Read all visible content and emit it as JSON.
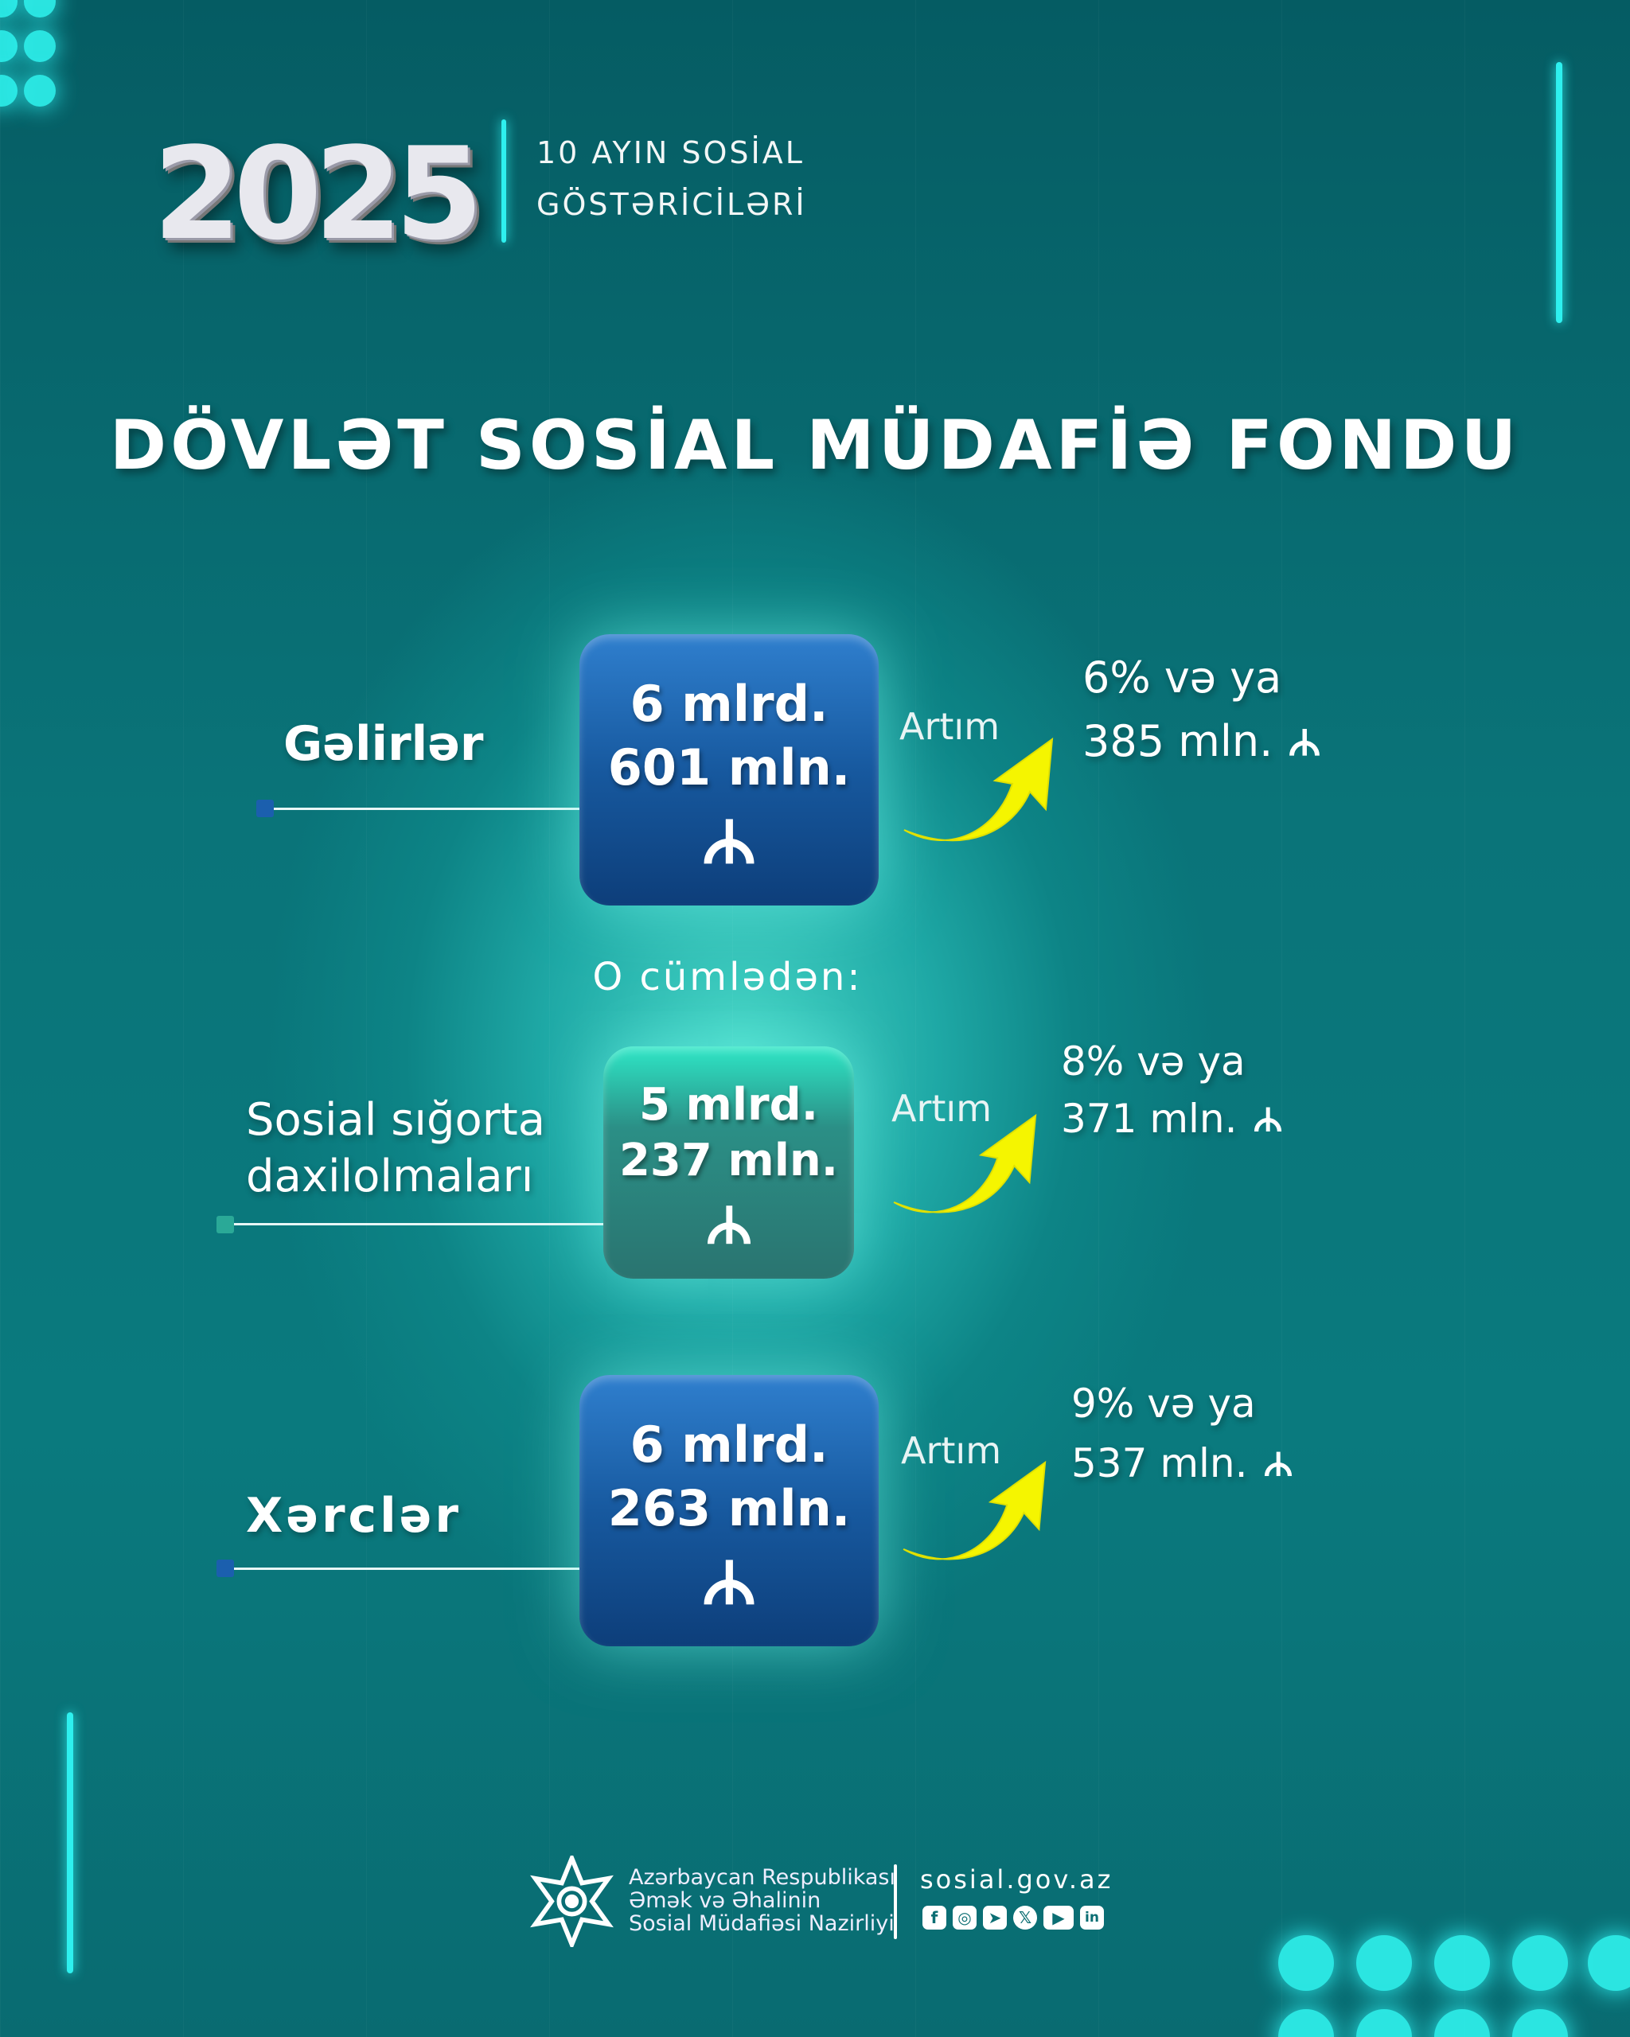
{
  "header": {
    "year": "2025",
    "subtitle_line1": "10 AYIN SOSİAL",
    "subtitle_line2": "GÖSTƏRİCİLƏRİ"
  },
  "title": "DÖVLƏT SOSİAL MÜDAFİƏ FONDU",
  "colors": {
    "background": "#0a7479",
    "accent_cyan": "#2ef0ef",
    "arrow_yellow": "#f5f500",
    "card_blue": "#17599f",
    "card_teal": "#2b8f86"
  },
  "currency_icon": "manat-icon",
  "items": [
    {
      "label": "Gəlirlər",
      "value_line1": "6 mlrd.",
      "value_line2": "601 mln.",
      "increase_label": "Artım",
      "increase_line1": "6% və ya",
      "increase_line2": "385 mln."
    },
    {
      "label_line1": "Sosial sığorta",
      "label_line2": "daxilolmaları",
      "value_line1": "5 mlrd.",
      "value_line2": "237 mln.",
      "increase_label": "Artım",
      "increase_line1": "8% və ya",
      "increase_line2": "371 mln."
    },
    {
      "label": "Xərclər",
      "value_line1": "6 mlrd.",
      "value_line2": "263 mln.",
      "increase_label": "Artım",
      "increase_line1": "9% və ya",
      "increase_line2": "537 mln."
    }
  ],
  "including_label": "O cümlədən:",
  "footer": {
    "org_line1": "Azərbaycan Respublikası",
    "org_line2": "Əmək və Əhalinin",
    "org_line3": "Sosial Müdafiəsi Nazirliyi",
    "website": "sosial.gov.az",
    "social_icons": [
      "facebook-icon",
      "instagram-icon",
      "telegram-icon",
      "x-icon",
      "youtube-icon",
      "linkedin-icon"
    ]
  }
}
